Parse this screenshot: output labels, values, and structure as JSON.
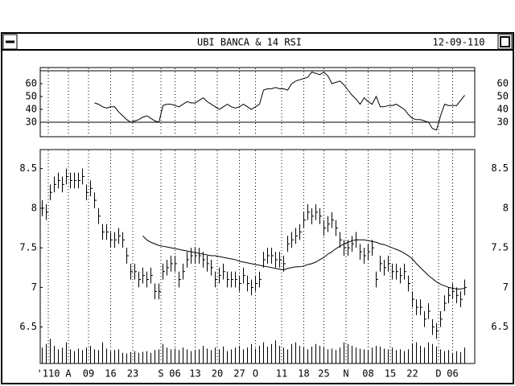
{
  "window": {
    "title": "UBI BANCA & 14 RSI",
    "date": "12-09-110"
  },
  "chart_data": [
    {
      "type": "line",
      "name_path": "rsi",
      "xlim": [
        -0.5,
        107.5
      ],
      "ylim": [
        18.75,
        72.5
      ],
      "yticks": [
        30,
        40,
        50,
        60
      ],
      "levels": [
        30,
        70
      ],
      "color": "#000000",
      "values": [
        null,
        null,
        null,
        null,
        null,
        null,
        null,
        null,
        null,
        null,
        null,
        null,
        null,
        45,
        44,
        42,
        41,
        42,
        42,
        38,
        35,
        32,
        30,
        31,
        32,
        34,
        35,
        33,
        31,
        30,
        43,
        44,
        44,
        43,
        42,
        44,
        46,
        45,
        45,
        47,
        49,
        46,
        44,
        42,
        40,
        42,
        44,
        42,
        41,
        42,
        44,
        42,
        40,
        42,
        44,
        55,
        56,
        56,
        57,
        56,
        56,
        55,
        60,
        62,
        63,
        64,
        65,
        69,
        68,
        67,
        69,
        66,
        60,
        61,
        62,
        59,
        55,
        51,
        48,
        44,
        49,
        46,
        44,
        50,
        42,
        42,
        43,
        43,
        44,
        42,
        40,
        36,
        33,
        32,
        32,
        31,
        30,
        25,
        24,
        35,
        44,
        43,
        43,
        43,
        47,
        51
      ]
    },
    {
      "type": "ohlc",
      "xlim": [
        -0.5,
        107.5
      ],
      "ylim": [
        6.04,
        8.74
      ],
      "yticks": [
        6.5,
        7.0,
        7.5,
        8.0,
        8.5
      ],
      "vlim": [
        0,
        100
      ],
      "color": "#000000",
      "xticks": [
        {
          "value": 1.5,
          "label": "'110"
        },
        {
          "value": 6.5,
          "label": "A"
        },
        {
          "value": 11.5,
          "label": "09"
        },
        {
          "value": 17,
          "label": "16"
        },
        {
          "value": 22.5,
          "label": "23"
        },
        {
          "value": 29.5,
          "label": "S"
        },
        {
          "value": 33,
          "label": "06"
        },
        {
          "value": 38,
          "label": "13"
        },
        {
          "value": 43.5,
          "label": "20"
        },
        {
          "value": 49,
          "label": "27"
        },
        {
          "value": 53,
          "label": "O"
        },
        {
          "value": 59.5,
          "label": "11"
        },
        {
          "value": 65,
          "label": "18"
        },
        {
          "value": 70,
          "label": "25"
        },
        {
          "value": 75.5,
          "label": "N"
        },
        {
          "value": 81,
          "label": "08"
        },
        {
          "value": 86.5,
          "label": "15"
        },
        {
          "value": 92,
          "label": "22"
        },
        {
          "value": 98.5,
          "label": "D"
        },
        {
          "value": 102,
          "label": "06"
        }
      ],
      "high": [
        8.1,
        8.05,
        8.3,
        8.4,
        8.45,
        8.4,
        8.5,
        8.45,
        8.45,
        8.45,
        8.5,
        8.3,
        8.35,
        8.2,
        8.0,
        7.8,
        7.8,
        7.7,
        7.7,
        7.75,
        7.7,
        7.5,
        7.3,
        7.3,
        7.2,
        7.25,
        7.2,
        7.25,
        7.05,
        7.05,
        7.3,
        7.35,
        7.4,
        7.4,
        7.2,
        7.3,
        7.45,
        7.5,
        7.5,
        7.5,
        7.45,
        7.4,
        7.35,
        7.2,
        7.25,
        7.3,
        7.2,
        7.2,
        7.2,
        7.15,
        7.25,
        7.15,
        7.1,
        7.15,
        7.2,
        7.45,
        7.5,
        7.5,
        7.45,
        7.45,
        7.4,
        7.65,
        7.7,
        7.75,
        7.8,
        7.95,
        8.05,
        8.0,
        8.05,
        8.0,
        7.85,
        7.9,
        7.95,
        7.85,
        7.7,
        7.6,
        7.6,
        7.65,
        7.7,
        7.55,
        7.5,
        7.55,
        7.6,
        7.2,
        7.4,
        7.35,
        7.4,
        7.3,
        7.3,
        7.25,
        7.3,
        7.15,
        6.95,
        6.85,
        6.85,
        6.7,
        6.8,
        6.6,
        6.55,
        6.7,
        6.9,
        7.0,
        7.05,
        7.0,
        6.95,
        7.1
      ],
      "low": [
        7.9,
        7.85,
        8.1,
        8.2,
        8.25,
        8.2,
        8.3,
        8.25,
        8.25,
        8.25,
        8.3,
        8.1,
        8.15,
        8.0,
        7.8,
        7.6,
        7.6,
        7.5,
        7.5,
        7.55,
        7.5,
        7.3,
        7.1,
        7.1,
        7.0,
        7.05,
        7.0,
        7.05,
        6.85,
        6.85,
        7.1,
        7.15,
        7.2,
        7.2,
        7.0,
        7.1,
        7.25,
        7.3,
        7.3,
        7.3,
        7.25,
        7.2,
        7.15,
        7.0,
        7.05,
        7.1,
        7.0,
        7.0,
        7.0,
        6.95,
        7.05,
        6.95,
        6.9,
        6.95,
        7.0,
        7.25,
        7.3,
        7.3,
        7.25,
        7.25,
        7.2,
        7.45,
        7.5,
        7.55,
        7.6,
        7.75,
        7.85,
        7.8,
        7.85,
        7.8,
        7.65,
        7.7,
        7.75,
        7.65,
        7.5,
        7.4,
        7.4,
        7.45,
        7.5,
        7.35,
        7.3,
        7.35,
        7.4,
        7.0,
        7.2,
        7.15,
        7.2,
        7.1,
        7.1,
        7.05,
        7.1,
        6.95,
        6.75,
        6.65,
        6.65,
        6.5,
        6.6,
        6.4,
        6.35,
        6.5,
        6.7,
        6.8,
        6.85,
        6.8,
        6.75,
        6.9
      ],
      "close": [
        8.0,
        7.95,
        8.2,
        8.3,
        8.35,
        8.3,
        8.4,
        8.35,
        8.35,
        8.35,
        8.4,
        8.2,
        8.25,
        8.1,
        7.9,
        7.7,
        7.7,
        7.6,
        7.6,
        7.65,
        7.6,
        7.4,
        7.2,
        7.2,
        7.1,
        7.15,
        7.1,
        7.15,
        6.95,
        6.95,
        7.2,
        7.25,
        7.3,
        7.3,
        7.1,
        7.2,
        7.35,
        7.4,
        7.4,
        7.4,
        7.35,
        7.3,
        7.25,
        7.1,
        7.15,
        7.2,
        7.1,
        7.1,
        7.1,
        7.05,
        7.15,
        7.05,
        7.0,
        7.05,
        7.1,
        7.35,
        7.4,
        7.4,
        7.35,
        7.35,
        7.3,
        7.55,
        7.6,
        7.65,
        7.7,
        7.85,
        7.95,
        7.9,
        7.95,
        7.9,
        7.75,
        7.8,
        7.85,
        7.75,
        7.6,
        7.5,
        7.5,
        7.55,
        7.6,
        7.45,
        7.4,
        7.45,
        7.5,
        7.1,
        7.3,
        7.25,
        7.3,
        7.2,
        7.2,
        7.15,
        7.2,
        7.05,
        6.85,
        6.75,
        6.75,
        6.6,
        6.7,
        6.5,
        6.45,
        6.6,
        6.8,
        6.9,
        6.95,
        6.9,
        6.85,
        7.0
      ],
      "ma": [
        null,
        null,
        null,
        null,
        null,
        null,
        null,
        null,
        null,
        null,
        null,
        null,
        null,
        null,
        null,
        null,
        null,
        null,
        null,
        null,
        null,
        null,
        null,
        null,
        null,
        7.65,
        7.6,
        7.57,
        7.55,
        7.53,
        7.52,
        7.51,
        7.5,
        7.49,
        7.48,
        7.47,
        7.46,
        7.45,
        7.44,
        7.43,
        7.42,
        7.41,
        7.4,
        7.4,
        7.39,
        7.38,
        7.37,
        7.36,
        7.35,
        7.33,
        7.32,
        7.31,
        7.3,
        7.29,
        7.28,
        7.27,
        7.26,
        7.25,
        7.24,
        7.23,
        7.22,
        7.24,
        7.25,
        7.26,
        7.26,
        7.27,
        7.29,
        7.3,
        7.32,
        7.35,
        7.38,
        7.42,
        7.45,
        7.49,
        7.52,
        7.55,
        7.57,
        7.59,
        7.6,
        7.6,
        7.6,
        7.59,
        7.58,
        7.57,
        7.55,
        7.54,
        7.52,
        7.5,
        7.48,
        7.46,
        7.43,
        7.4,
        7.36,
        7.3,
        7.25,
        7.2,
        7.15,
        7.11,
        7.07,
        7.04,
        7.02,
        7.0,
        6.99,
        6.98,
        6.98,
        6.99
      ],
      "volume": [
        45,
        55,
        70,
        50,
        40,
        45,
        60,
        40,
        35,
        42,
        38,
        45,
        50,
        40,
        38,
        60,
        42,
        35,
        38,
        40,
        30,
        28,
        32,
        35,
        30,
        33,
        35,
        30,
        38,
        40,
        55,
        45,
        40,
        42,
        38,
        45,
        40,
        35,
        38,
        40,
        50,
        42,
        38,
        45,
        40,
        48,
        35,
        40,
        45,
        50,
        40,
        45,
        55,
        42,
        50,
        60,
        48,
        55,
        65,
        50,
        45,
        40,
        55,
        60,
        50,
        45,
        40,
        48,
        55,
        50,
        45,
        40,
        42,
        38,
        45,
        60,
        55,
        50,
        45,
        42,
        40,
        38,
        45,
        50,
        48,
        42,
        40,
        45,
        38,
        40,
        35,
        40,
        55,
        60,
        50,
        45,
        60,
        55,
        48,
        40,
        35,
        38,
        30,
        35,
        32,
        45
      ]
    }
  ]
}
